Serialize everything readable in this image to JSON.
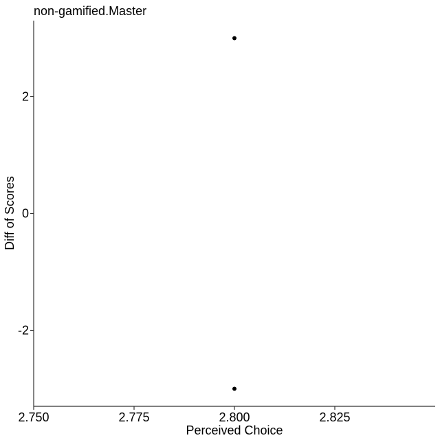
{
  "chart_data": {
    "type": "scatter",
    "title": "non-gamified.Master",
    "xlabel": "Perceived Choice",
    "ylabel": "Diff of Scores",
    "xlim": [
      2.75,
      2.85
    ],
    "ylim": [
      -3.3,
      3.3
    ],
    "x_ticks": [
      2.75,
      2.775,
      2.8,
      2.825
    ],
    "x_tick_labels": [
      "2.750",
      "2.775",
      "2.800",
      "2.825"
    ],
    "y_ticks": [
      -2,
      0,
      2
    ],
    "y_tick_labels": [
      "-2",
      "0",
      "2"
    ],
    "grid": false,
    "series": [
      {
        "points": [
          {
            "x": 2.8,
            "y": 3
          },
          {
            "x": 2.8,
            "y": -3
          }
        ],
        "color": "#000000"
      }
    ]
  }
}
